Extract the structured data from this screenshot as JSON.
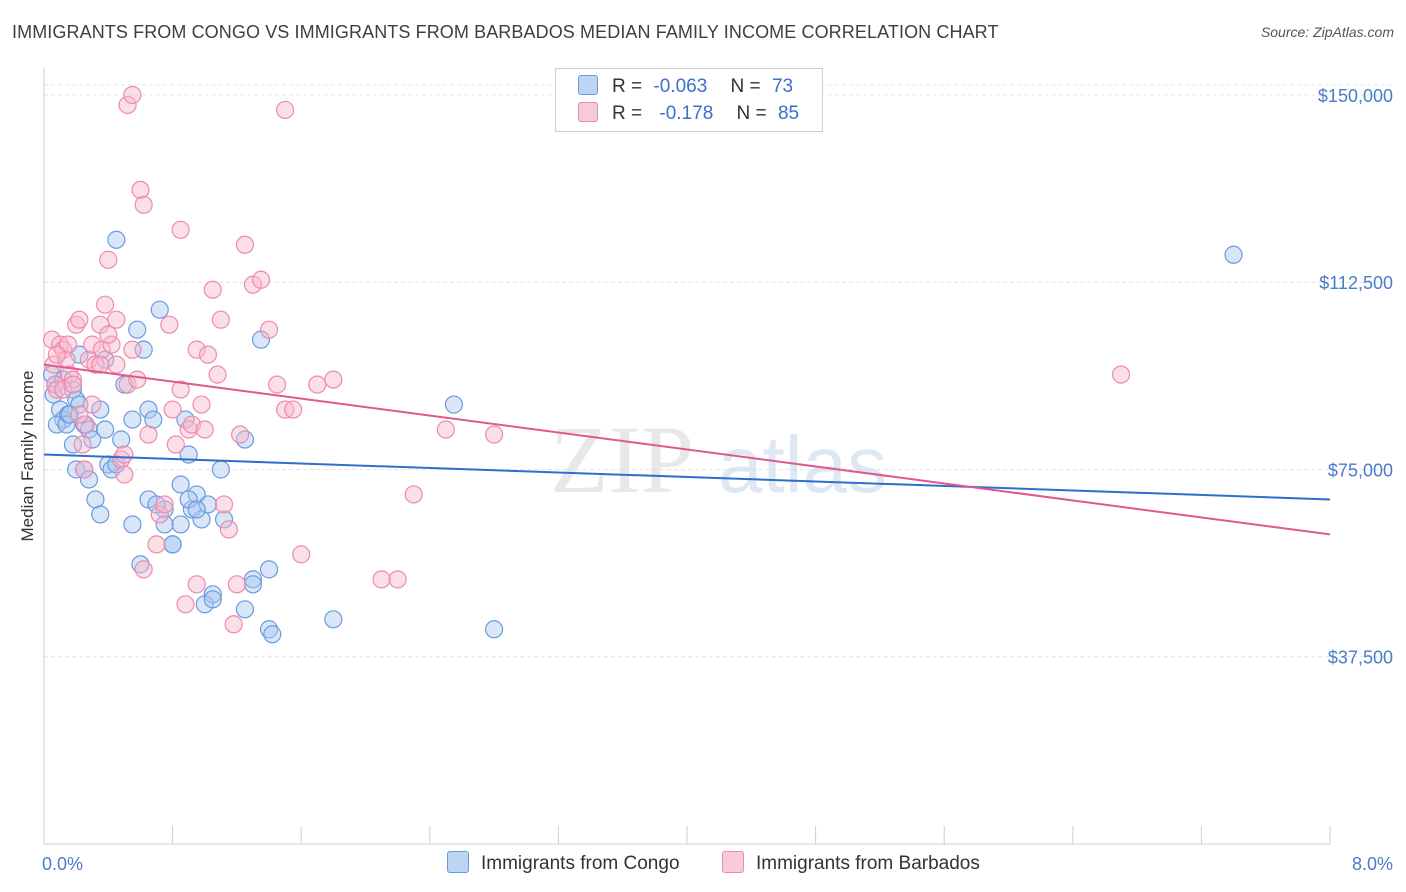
{
  "title": "IMMIGRANTS FROM CONGO VS IMMIGRANTS FROM BARBADOS MEDIAN FAMILY INCOME CORRELATION CHART",
  "source": "Source: ZipAtlas.com",
  "watermark": {
    "zip": "ZIP",
    "atlas": "atlas"
  },
  "legend": {
    "r_label": "R =",
    "n_label": "N =",
    "congo": {
      "r": "-0.063",
      "n": "73"
    },
    "barbados": {
      "r": "-0.178",
      "n": "85"
    }
  },
  "colors": {
    "congo_fill": "#a8c8f0",
    "congo_stroke": "#6a9be0",
    "congo_line": "#2f6fcc",
    "barbados_fill": "#f6b8cc",
    "barbados_stroke": "#ee8aab",
    "barbados_line": "#e0588c",
    "tick_label": "#4a7cc9",
    "grid": "#e4e4e4"
  },
  "chart_data": {
    "type": "scatter",
    "title": "IMMIGRANTS FROM CONGO VS IMMIGRANTS FROM BARBADOS MEDIAN FAMILY INCOME CORRELATION CHART",
    "xlabel": "",
    "ylabel": "Median Family Income",
    "xlim": [
      0,
      8.0
    ],
    "ylim": [
      0,
      155000
    ],
    "x_tick_labels": [
      "0.0%",
      "8.0%"
    ],
    "y_ticks": [
      37500,
      75000,
      112500,
      150000
    ],
    "y_tick_labels": [
      "$37,500",
      "$75,000",
      "$112,500",
      "$150,000"
    ],
    "grid": true,
    "legend_position": "top-center",
    "series": [
      {
        "name": "Immigrants from Congo",
        "r": -0.063,
        "n": 73,
        "trend": {
          "x": [
            0,
            8.0
          ],
          "y": [
            78000,
            69000
          ]
        },
        "points": [
          [
            0.05,
            94000
          ],
          [
            0.07,
            92000
          ],
          [
            0.06,
            90000
          ],
          [
            0.1,
            87000
          ],
          [
            0.12,
            85000
          ],
          [
            0.08,
            84000
          ],
          [
            0.15,
            86000
          ],
          [
            0.18,
            91000
          ],
          [
            0.2,
            89000
          ],
          [
            0.22,
            88000
          ],
          [
            0.25,
            84000
          ],
          [
            0.28,
            83000
          ],
          [
            0.3,
            81000
          ],
          [
            0.35,
            87000
          ],
          [
            0.38,
            83000
          ],
          [
            0.4,
            76000
          ],
          [
            0.42,
            75000
          ],
          [
            0.45,
            76000
          ],
          [
            0.5,
            92000
          ],
          [
            0.55,
            85000
          ],
          [
            0.58,
            103000
          ],
          [
            0.62,
            99000
          ],
          [
            0.65,
            87000
          ],
          [
            0.68,
            85000
          ],
          [
            0.72,
            107000
          ],
          [
            0.75,
            67000
          ],
          [
            0.8,
            60000
          ],
          [
            0.85,
            72000
          ],
          [
            0.88,
            85000
          ],
          [
            0.9,
            78000
          ],
          [
            0.92,
            67000
          ],
          [
            0.95,
            70000
          ],
          [
            0.98,
            65000
          ],
          [
            1.02,
            68000
          ],
          [
            1.05,
            50000
          ],
          [
            1.1,
            75000
          ],
          [
            1.12,
            65000
          ],
          [
            1.25,
            81000
          ],
          [
            1.3,
            53000
          ],
          [
            1.4,
            55000
          ],
          [
            0.12,
            93000
          ],
          [
            0.14,
            84000
          ],
          [
            0.16,
            86000
          ],
          [
            0.18,
            80000
          ],
          [
            0.2,
            75000
          ],
          [
            0.22,
            98000
          ],
          [
            0.25,
            75000
          ],
          [
            0.28,
            73000
          ],
          [
            0.32,
            69000
          ],
          [
            0.35,
            66000
          ],
          [
            0.38,
            97000
          ],
          [
            0.45,
            121000
          ],
          [
            0.48,
            81000
          ],
          [
            0.55,
            64000
          ],
          [
            0.6,
            56000
          ],
          [
            0.65,
            69000
          ],
          [
            0.7,
            68000
          ],
          [
            0.75,
            64000
          ],
          [
            0.8,
            60000
          ],
          [
            0.85,
            64000
          ],
          [
            0.9,
            69000
          ],
          [
            0.95,
            67000
          ],
          [
            1.0,
            48000
          ],
          [
            1.05,
            49000
          ],
          [
            1.25,
            47000
          ],
          [
            1.3,
            52000
          ],
          [
            1.4,
            43000
          ],
          [
            1.35,
            101000
          ],
          [
            1.8,
            45000
          ],
          [
            2.55,
            88000
          ],
          [
            2.8,
            43000
          ],
          [
            1.42,
            42000
          ],
          [
            7.4,
            118000
          ]
        ]
      },
      {
        "name": "Immigrants from Barbados",
        "r": -0.178,
        "n": 85,
        "trend": {
          "x": [
            0,
            8.0
          ],
          "y": [
            96000,
            62000
          ]
        },
        "points": [
          [
            0.05,
            101000
          ],
          [
            0.06,
            96000
          ],
          [
            0.07,
            92000
          ],
          [
            0.08,
            91000
          ],
          [
            0.1,
            100000
          ],
          [
            0.12,
            99000
          ],
          [
            0.14,
            97000
          ],
          [
            0.16,
            94000
          ],
          [
            0.18,
            93000
          ],
          [
            0.2,
            104000
          ],
          [
            0.22,
            105000
          ],
          [
            0.24,
            80000
          ],
          [
            0.26,
            84000
          ],
          [
            0.28,
            97000
          ],
          [
            0.3,
            100000
          ],
          [
            0.32,
            96000
          ],
          [
            0.35,
            104000
          ],
          [
            0.36,
            99000
          ],
          [
            0.38,
            108000
          ],
          [
            0.4,
            117000
          ],
          [
            0.42,
            100000
          ],
          [
            0.45,
            105000
          ],
          [
            0.48,
            77000
          ],
          [
            0.5,
            74000
          ],
          [
            0.52,
            92000
          ],
          [
            0.55,
            99000
          ],
          [
            0.58,
            93000
          ],
          [
            0.6,
            131000
          ],
          [
            0.62,
            128000
          ],
          [
            0.65,
            82000
          ],
          [
            0.7,
            60000
          ],
          [
            0.72,
            66000
          ],
          [
            0.75,
            68000
          ],
          [
            0.78,
            104000
          ],
          [
            0.8,
            87000
          ],
          [
            0.82,
            80000
          ],
          [
            0.85,
            91000
          ],
          [
            0.88,
            48000
          ],
          [
            0.9,
            83000
          ],
          [
            0.92,
            84000
          ],
          [
            0.95,
            99000
          ],
          [
            0.98,
            88000
          ],
          [
            1.0,
            83000
          ],
          [
            1.02,
            98000
          ],
          [
            1.05,
            111000
          ],
          [
            1.08,
            94000
          ],
          [
            1.1,
            105000
          ],
          [
            1.12,
            68000
          ],
          [
            1.15,
            63000
          ],
          [
            1.18,
            44000
          ],
          [
            1.2,
            52000
          ],
          [
            1.22,
            82000
          ],
          [
            1.25,
            120000
          ],
          [
            1.3,
            112000
          ],
          [
            1.35,
            113000
          ],
          [
            1.4,
            103000
          ],
          [
            1.45,
            92000
          ],
          [
            1.5,
            87000
          ],
          [
            1.55,
            87000
          ],
          [
            1.6,
            58000
          ],
          [
            1.7,
            92000
          ],
          [
            1.8,
            93000
          ],
          [
            2.1,
            53000
          ],
          [
            2.2,
            53000
          ],
          [
            2.3,
            70000
          ],
          [
            2.5,
            83000
          ],
          [
            2.8,
            82000
          ],
          [
            0.52,
            148000
          ],
          [
            0.55,
            150000
          ],
          [
            1.5,
            147000
          ],
          [
            0.85,
            123000
          ],
          [
            0.62,
            55000
          ],
          [
            0.5,
            78000
          ],
          [
            0.45,
            96000
          ],
          [
            0.4,
            102000
          ],
          [
            0.35,
            96000
          ],
          [
            0.3,
            88000
          ],
          [
            0.25,
            75000
          ],
          [
            0.15,
            100000
          ],
          [
            0.12,
            91000
          ],
          [
            0.08,
            98000
          ],
          [
            0.18,
            92000
          ],
          [
            0.22,
            86000
          ],
          [
            0.95,
            52000
          ],
          [
            6.7,
            94000
          ]
        ]
      }
    ]
  },
  "bottom_legend": {
    "congo": "Immigrants from Congo",
    "barbados": "Immigrants from Barbados"
  }
}
